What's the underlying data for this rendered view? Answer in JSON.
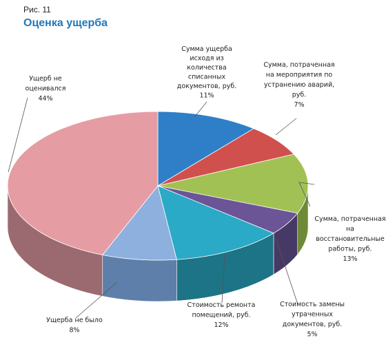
{
  "figure": {
    "number": "Рис. 11",
    "title": "Оценка ущерба"
  },
  "chart_data": {
    "type": "pie",
    "title": "Оценка ущерба",
    "slices": [
      {
        "label": "Сумма ущерба исходя из количества списанных документов, руб.",
        "value": 11,
        "percent": "11%",
        "color": "#2f7fc8",
        "side": "#1f5789"
      },
      {
        "label": "Сумма, потраченная на мероприятия по устранению аварий, руб.",
        "value": 7,
        "percent": "7%",
        "color": "#d0504e",
        "side": "#8e3432"
      },
      {
        "label": "Сумма, потраченная на восстановительные работы, руб.",
        "value": 13,
        "percent": "13%",
        "color": "#a2c154",
        "side": "#6f8a36"
      },
      {
        "label": "Стоимость замены утраченных документов, руб.",
        "value": 5,
        "percent": "5%",
        "color": "#6b5597",
        "side": "#473966"
      },
      {
        "label": "Стоимость ремонта помещений, руб.",
        "value": 12,
        "percent": "12%",
        "color": "#2aaac6",
        "side": "#1c7486"
      },
      {
        "label": "Ущерба не было",
        "value": 8,
        "percent": "8%",
        "color": "#8eb0de",
        "side": "#5f7fab"
      },
      {
        "label": "Ущерб не оценивался",
        "value": 44,
        "percent": "44%",
        "color": "#e59da3",
        "side": "#9b6a70"
      }
    ],
    "label_lines": [
      [
        "Сумма ущерба",
        "исходя из",
        "количества",
        "списанных",
        "документов, руб.",
        "11%"
      ],
      [
        "Сумма, потраченная",
        "на мероприятия по",
        "устранению аварий,",
        "руб.",
        "7%"
      ],
      [
        "Сумма, потраченная",
        "на",
        "восстановительные",
        "работы, руб.",
        "13%"
      ],
      [
        "Стоимость замены",
        "утраченных",
        "документов, руб.",
        "5%"
      ],
      [
        "Стоимость ремонта",
        "помещений, руб.",
        "12%"
      ],
      [
        "Ущерба не было",
        "8%"
      ],
      [
        "Ущерб не",
        "оценивался",
        "44%"
      ]
    ],
    "legend": "none"
  }
}
